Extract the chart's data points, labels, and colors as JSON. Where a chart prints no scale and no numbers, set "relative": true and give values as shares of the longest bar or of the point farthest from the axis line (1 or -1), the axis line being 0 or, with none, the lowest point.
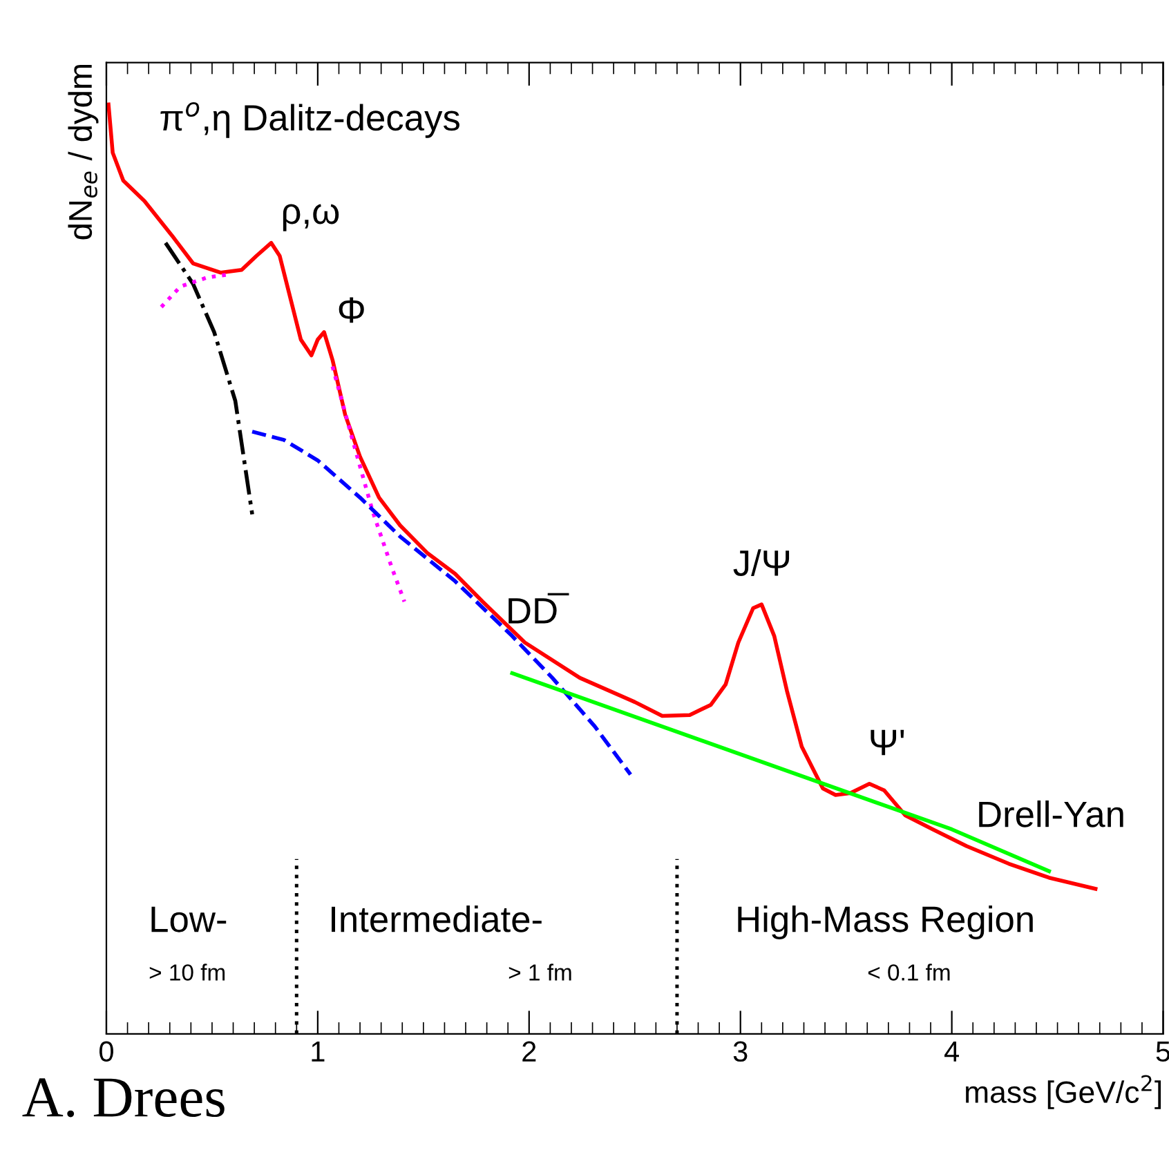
{
  "chart_data": {
    "type": "line",
    "relative": true,
    "xlabel": "mass [GeV/c$^{2}$]",
    "ylabel": "dN$_{ee}$ / dydm",
    "xlim": [
      0,
      5
    ],
    "xticks": [
      0,
      1,
      2,
      3,
      4,
      5
    ],
    "legend": false,
    "grid": false,
    "series": [
      {
        "color": "#ff0000",
        "line_style": "solid",
        "x": [
          0.01,
          0.03,
          0.08,
          0.18,
          0.31,
          0.41,
          0.54,
          0.64,
          0.71,
          0.78,
          0.82,
          0.87,
          0.92,
          0.97,
          1.0,
          1.03,
          1.07,
          1.13,
          1.2,
          1.29,
          1.39,
          1.52,
          1.65,
          1.78,
          1.98,
          2.24,
          2.5,
          2.63,
          2.76,
          2.86,
          2.93,
          2.99,
          3.06,
          3.1,
          3.16,
          3.22,
          3.29,
          3.39,
          3.45,
          3.52,
          3.61,
          3.68,
          3.78,
          3.91,
          4.07,
          4.27,
          4.46,
          4.68
        ],
        "values": [
          1.0,
          0.948,
          0.918,
          0.896,
          0.859,
          0.829,
          0.819,
          0.822,
          0.837,
          0.851,
          0.837,
          0.792,
          0.747,
          0.73,
          0.747,
          0.755,
          0.725,
          0.666,
          0.621,
          0.577,
          0.547,
          0.517,
          0.495,
          0.465,
          0.421,
          0.383,
          0.357,
          0.342,
          0.343,
          0.354,
          0.376,
          0.421,
          0.458,
          0.462,
          0.428,
          0.369,
          0.309,
          0.264,
          0.257,
          0.259,
          0.269,
          0.262,
          0.235,
          0.22,
          0.202,
          0.183,
          0.168,
          0.156
        ]
      },
      {
        "color": "#000000",
        "line_style": "dashdot",
        "x": [
          0.28,
          0.41,
          0.51,
          0.61,
          0.69
        ],
        "values": [
          0.851,
          0.807,
          0.755,
          0.681,
          0.559
        ]
      },
      {
        "color": "#ff00ff",
        "line_style": "dotted",
        "x": [
          0.26,
          0.35,
          0.48,
          0.58
        ],
        "values": [
          0.782,
          0.804,
          0.814,
          0.817
        ]
      },
      {
        "color": "#ff00ff",
        "line_style": "dotted",
        "x": [
          1.07,
          1.16,
          1.26,
          1.35,
          1.41
        ],
        "values": [
          0.718,
          0.643,
          0.562,
          0.502,
          0.465
        ]
      },
      {
        "color": "#0000ff",
        "line_style": "dashed",
        "x": [
          0.69,
          0.84,
          1.0,
          1.2,
          1.39,
          1.65,
          1.92,
          2.11,
          2.31,
          2.48
        ],
        "values": [
          0.648,
          0.639,
          0.617,
          0.577,
          0.535,
          0.487,
          0.428,
          0.383,
          0.331,
          0.279
        ]
      },
      {
        "color": "#00ff00",
        "line_style": "solid",
        "x": [
          1.92,
          4.0,
          4.46
        ],
        "values": [
          0.388,
          0.22,
          0.175
        ]
      }
    ],
    "ref_lines": [
      {
        "axis": "x",
        "value": 0.9,
        "color": "#000000",
        "line_style": "dotted"
      },
      {
        "axis": "x",
        "value": 2.7,
        "color": "#000000",
        "line_style": "dotted"
      }
    ],
    "annotations": [
      "π$^{o}$,η Dalitz-decays",
      {
        "text": "ρ,ω",
        "x": 0.78,
        "y": 0.851
      },
      {
        "text": "Φ",
        "x": 1.0,
        "y": 0.755
      },
      {
        "text": "DD̅",
        "x": 1.98,
        "y": 0.421
      },
      {
        "text": "J/Ψ",
        "x": 3.1,
        "y": 0.462
      },
      {
        "text": "Ψ'",
        "x": 3.65,
        "y": 0.269
      },
      {
        "text": "Drell-Yan",
        "x": 4.07,
        "y": 0.202
      },
      "Low-",
      "> 10 fm",
      "Intermediate-",
      "> 1 fm",
      "High-Mass Region",
      "< 0.1 fm",
      "A. Drees"
    ]
  }
}
